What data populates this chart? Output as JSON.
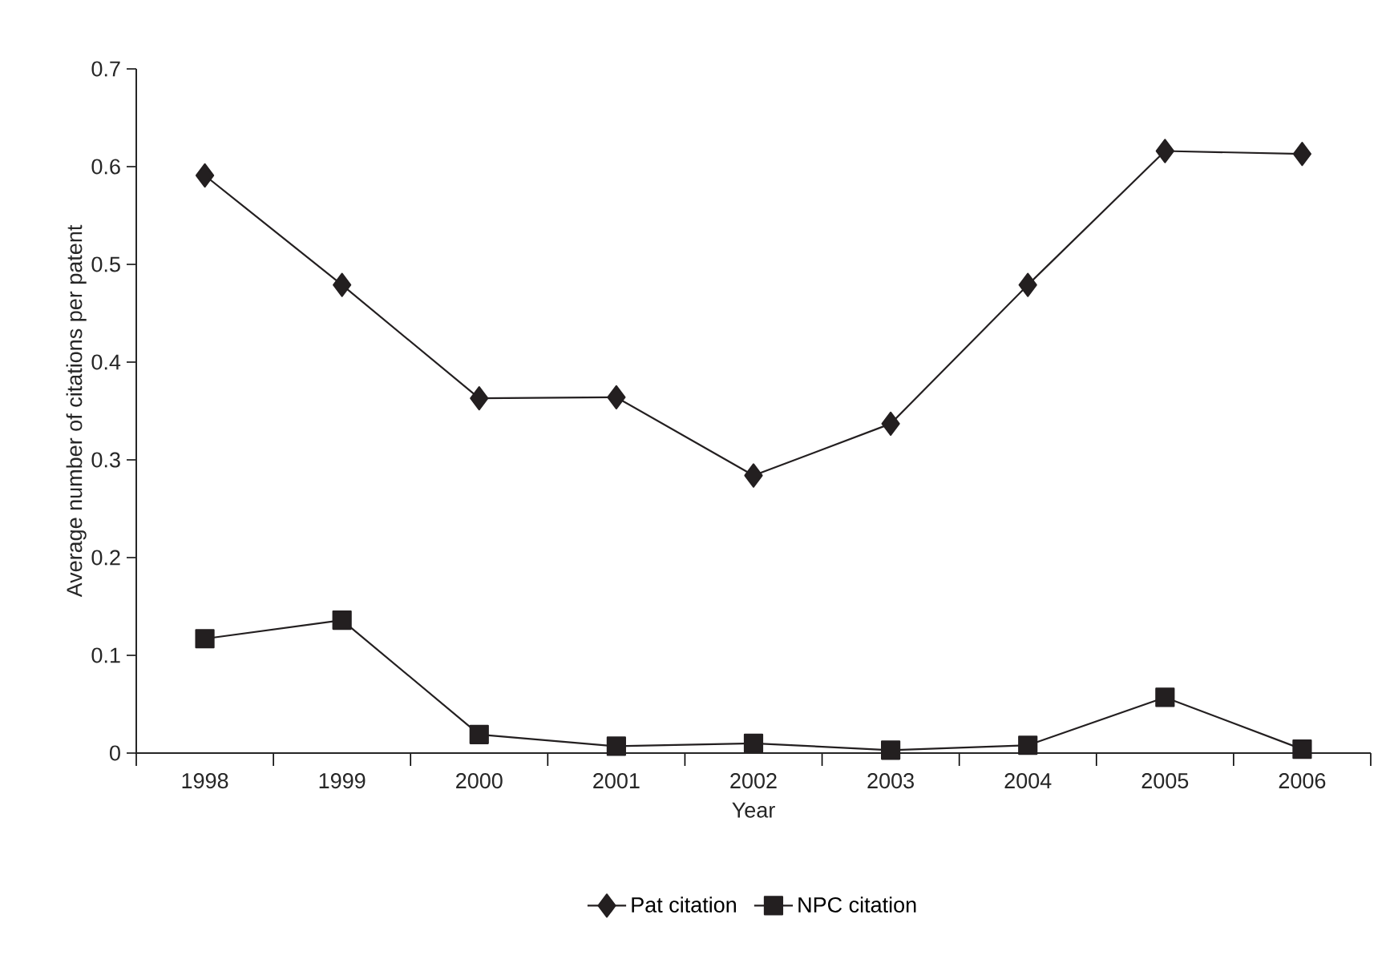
{
  "chart_data": {
    "type": "line",
    "xlabel": "Year",
    "ylabel": "Average number of citations per patent",
    "categories": [
      "1998",
      "1999",
      "2000",
      "2001",
      "2002",
      "2003",
      "2004",
      "2005",
      "2006"
    ],
    "series": [
      {
        "name": "Pat citation",
        "color": "#231f20",
        "marker": "diamond",
        "values": [
          0.591,
          0.479,
          0.363,
          0.364,
          0.284,
          0.337,
          0.479,
          0.616,
          0.613
        ]
      },
      {
        "name": "NPC citation",
        "color": "#231f20",
        "marker": "square",
        "values": [
          0.117,
          0.136,
          0.019,
          0.007,
          0.01,
          0.003,
          0.008,
          0.057,
          0.004
        ]
      }
    ],
    "ylim": [
      0,
      0.7
    ],
    "yticks": [
      0,
      0.1,
      0.2,
      0.3,
      0.4,
      0.5,
      0.6,
      0.7
    ],
    "grid": false,
    "legend": "bottom",
    "line_style": "solid"
  }
}
